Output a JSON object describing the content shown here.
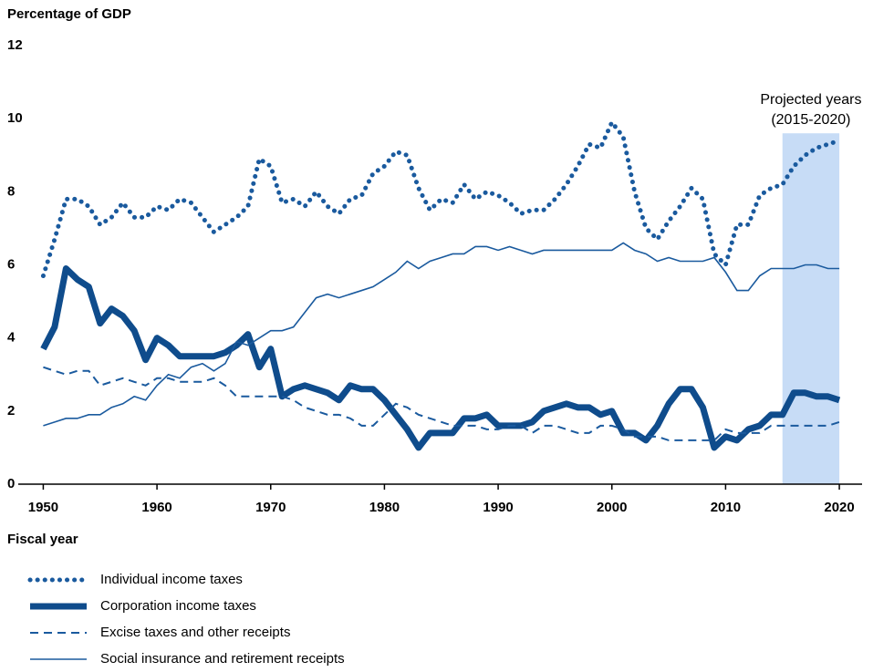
{
  "chart_data": {
    "type": "line",
    "y_axis_title": "Percentage of GDP",
    "x_axis_title": "Fiscal year",
    "annotation": [
      "Projected years",
      "(2015-2020)"
    ],
    "shaded_region": [
      2015,
      2020
    ],
    "shade_color": "#c7dcf6",
    "xlim": [
      1947.8,
      2022
    ],
    "ylim": [
      0,
      12
    ],
    "xticks": [
      1950,
      1960,
      1970,
      1980,
      1990,
      2000,
      2010,
      2020
    ],
    "yticks": [
      0,
      2,
      4,
      6,
      8,
      10,
      12
    ],
    "x": [
      1950,
      1951,
      1952,
      1953,
      1954,
      1955,
      1956,
      1957,
      1958,
      1959,
      1960,
      1961,
      1962,
      1963,
      1964,
      1965,
      1966,
      1967,
      1968,
      1969,
      1970,
      1971,
      1972,
      1973,
      1974,
      1975,
      1976,
      1977,
      1978,
      1979,
      1980,
      1981,
      1982,
      1983,
      1984,
      1985,
      1986,
      1987,
      1988,
      1989,
      1990,
      1991,
      1992,
      1993,
      1994,
      1995,
      1996,
      1997,
      1998,
      1999,
      2000,
      2001,
      2002,
      2003,
      2004,
      2005,
      2006,
      2007,
      2008,
      2009,
      2010,
      2011,
      2012,
      2013,
      2014,
      2015,
      2016,
      2017,
      2018,
      2019,
      2020
    ],
    "series": [
      {
        "name": "Individual income taxes",
        "color": "#1a5a9e",
        "style": "dotted",
        "values": [
          5.7,
          6.7,
          7.8,
          7.8,
          7.6,
          7.1,
          7.3,
          7.7,
          7.3,
          7.3,
          7.6,
          7.5,
          7.8,
          7.7,
          7.3,
          6.9,
          7.1,
          7.3,
          7.6,
          8.9,
          8.7,
          7.7,
          7.8,
          7.6,
          8.0,
          7.6,
          7.4,
          7.8,
          7.9,
          8.5,
          8.7,
          9.1,
          9.0,
          8.1,
          7.5,
          7.8,
          7.7,
          8.2,
          7.8,
          8.0,
          7.9,
          7.7,
          7.4,
          7.5,
          7.5,
          7.8,
          8.2,
          8.7,
          9.3,
          9.2,
          9.9,
          9.5,
          8.0,
          7.0,
          6.7,
          7.2,
          7.6,
          8.1,
          7.8,
          6.3,
          6.0,
          7.1,
          7.1,
          7.9,
          8.1,
          8.2,
          8.7,
          9.0,
          9.2,
          9.3,
          9.4
        ]
      },
      {
        "name": "Corporation income taxes",
        "color": "#0f4c8c",
        "style": "thick",
        "values": [
          3.7,
          4.3,
          5.9,
          5.6,
          5.4,
          4.4,
          4.8,
          4.6,
          4.2,
          3.4,
          4.0,
          3.8,
          3.5,
          3.5,
          3.5,
          3.5,
          3.6,
          3.8,
          4.1,
          3.2,
          3.7,
          2.4,
          2.6,
          2.7,
          2.6,
          2.5,
          2.3,
          2.7,
          2.6,
          2.6,
          2.3,
          1.9,
          1.5,
          1.0,
          1.4,
          1.4,
          1.4,
          1.8,
          1.8,
          1.9,
          1.6,
          1.6,
          1.6,
          1.7,
          2.0,
          2.1,
          2.2,
          2.1,
          2.1,
          1.9,
          2.0,
          1.4,
          1.4,
          1.2,
          1.6,
          2.2,
          2.6,
          2.6,
          2.1,
          1.0,
          1.3,
          1.2,
          1.5,
          1.6,
          1.9,
          1.9,
          2.5,
          2.5,
          2.4,
          2.4,
          2.3
        ]
      },
      {
        "name": "Excise taxes and other receipts",
        "color": "#1a5a9e",
        "style": "dashed",
        "values": [
          3.2,
          3.1,
          3.0,
          3.1,
          3.1,
          2.7,
          2.8,
          2.9,
          2.8,
          2.7,
          2.9,
          2.9,
          2.8,
          2.8,
          2.8,
          2.9,
          2.7,
          2.4,
          2.4,
          2.4,
          2.4,
          2.4,
          2.3,
          2.1,
          2.0,
          1.9,
          1.9,
          1.8,
          1.6,
          1.6,
          1.9,
          2.2,
          2.1,
          1.9,
          1.8,
          1.7,
          1.6,
          1.6,
          1.6,
          1.5,
          1.5,
          1.6,
          1.6,
          1.4,
          1.6,
          1.6,
          1.5,
          1.4,
          1.4,
          1.6,
          1.6,
          1.5,
          1.3,
          1.3,
          1.3,
          1.2,
          1.2,
          1.2,
          1.2,
          1.2,
          1.5,
          1.4,
          1.4,
          1.4,
          1.6,
          1.6,
          1.6,
          1.6,
          1.6,
          1.6,
          1.7
        ]
      },
      {
        "name": "Social insurance and retirement receipts",
        "color": "#1a5a9e",
        "style": "thin",
        "values": [
          1.6,
          1.7,
          1.8,
          1.8,
          1.9,
          1.9,
          2.1,
          2.2,
          2.4,
          2.3,
          2.7,
          3.0,
          2.9,
          3.2,
          3.3,
          3.1,
          3.3,
          3.9,
          3.8,
          4.0,
          4.2,
          4.2,
          4.3,
          4.7,
          5.1,
          5.2,
          5.1,
          5.2,
          5.3,
          5.4,
          5.6,
          5.8,
          6.1,
          5.9,
          6.1,
          6.2,
          6.3,
          6.3,
          6.5,
          6.5,
          6.4,
          6.5,
          6.4,
          6.3,
          6.4,
          6.4,
          6.4,
          6.4,
          6.4,
          6.4,
          6.4,
          6.6,
          6.4,
          6.3,
          6.1,
          6.2,
          6.1,
          6.1,
          6.1,
          6.2,
          5.8,
          5.3,
          5.3,
          5.7,
          5.9,
          5.9,
          5.9,
          6.0,
          6.0,
          5.9,
          5.9
        ]
      }
    ]
  }
}
